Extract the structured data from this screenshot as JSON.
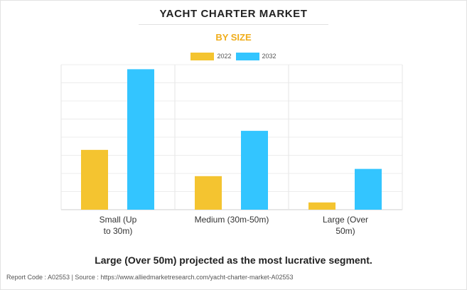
{
  "header": {
    "title": "YACHT CHARTER MARKET",
    "subtitle": "BY SIZE"
  },
  "colors": {
    "series_2022": "#f4c430",
    "series_2032": "#33c5ff",
    "subtitle": "#f0ad1b"
  },
  "chart_data": {
    "type": "bar",
    "title": "",
    "categories": [
      "Small (Up to 30m)",
      "Medium (30m-50m)",
      "Large (Over 50m)"
    ],
    "category_lines": [
      [
        "Small (Up",
        "to 30m)"
      ],
      [
        "Medium (30m-50m)"
      ],
      [
        "Large (Over",
        "50m)"
      ]
    ],
    "series": [
      {
        "name": "2022",
        "values": [
          3.3,
          1.85,
          0.4
        ]
      },
      {
        "name": "2032",
        "values": [
          7.75,
          4.35,
          2.25
        ]
      }
    ],
    "ylim": [
      0,
      8
    ],
    "grid": true,
    "legend": "top-center",
    "xlabel": "",
    "ylabel": ""
  },
  "headline": "Large (Over 50m) projected as the most lucrative segment.",
  "footer": "Report Code : A02553  |  Source : https://www.alliedmarketresearch.com/yacht-charter-market-A02553"
}
